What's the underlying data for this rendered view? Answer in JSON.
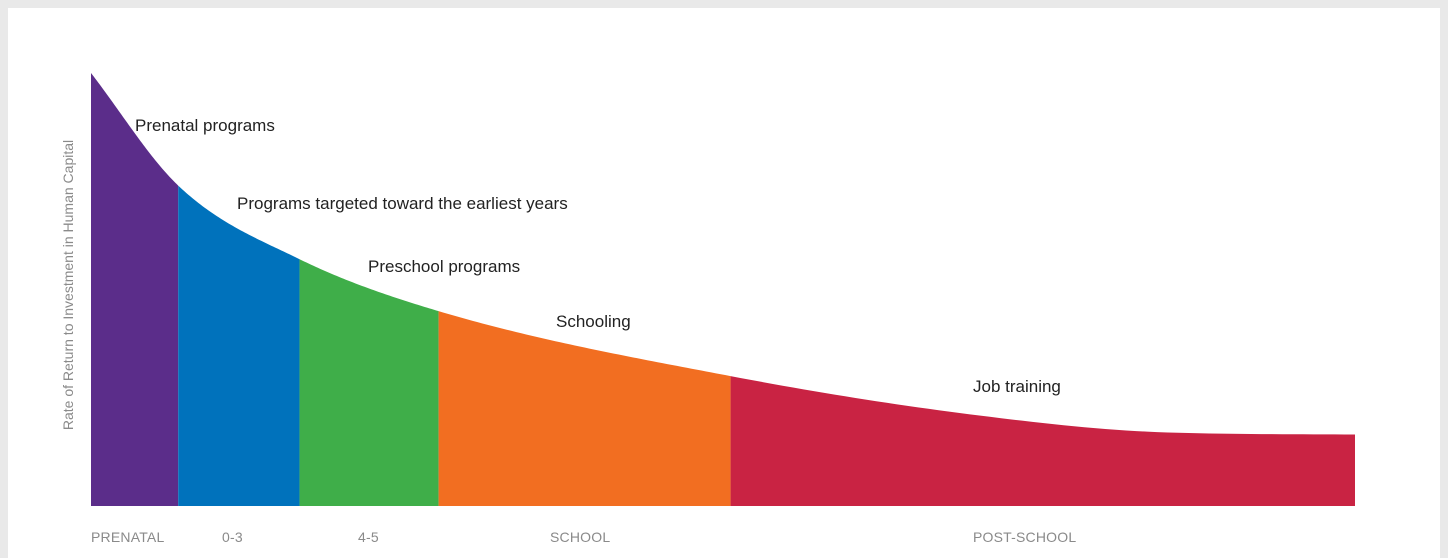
{
  "chart_data": {
    "type": "area",
    "ylabel": "Rate of Return to Investment in Human Capital",
    "xlabel": "",
    "stages": [
      {
        "tick": "PRENATAL",
        "label": "Prenatal programs",
        "color": "#5b2d8a"
      },
      {
        "tick": "0-3",
        "label": "Programs targeted toward the earliest years",
        "color": "#0072bc"
      },
      {
        "tick": "4-5",
        "label": "Preschool programs",
        "color": "#3fae49"
      },
      {
        "tick": "SCHOOL",
        "label": "Schooling",
        "color": "#f26e21"
      },
      {
        "tick": "POST-SCHOOL",
        "label": "Job training",
        "color": "#c92343"
      }
    ],
    "x_range": [
      0,
      100
    ],
    "y_range": [
      0,
      100
    ],
    "boundaries": [
      0,
      6.9,
      16.5,
      27.5,
      50.6,
      100
    ],
    "curve": {
      "x": [
        0,
        6.9,
        16.5,
        27.5,
        50.6,
        70,
        85,
        100
      ],
      "y": [
        100,
        74,
        57,
        45,
        30,
        21,
        17,
        16.5
      ]
    },
    "grid": false,
    "legend": "none"
  }
}
